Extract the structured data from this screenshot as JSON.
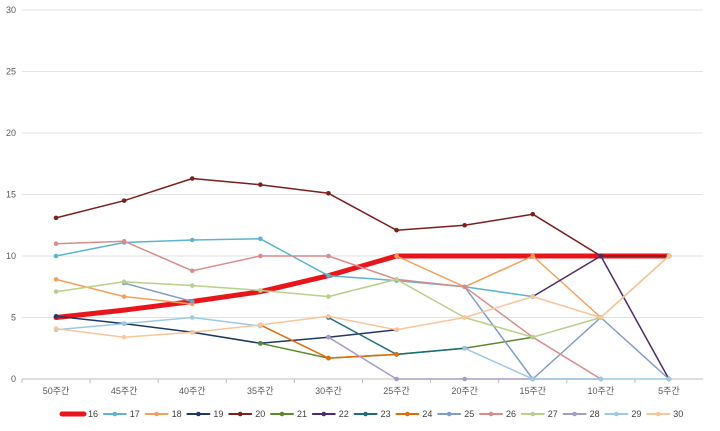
{
  "chart_data": {
    "type": "line",
    "title": "",
    "xlabel": "",
    "ylabel": "",
    "ylim": [
      0,
      30
    ],
    "y_ticks": [
      0,
      5,
      10,
      15,
      20,
      25,
      30
    ],
    "grid": true,
    "legend_position": "bottom",
    "categories": [
      "50주간",
      "45주간",
      "40주간",
      "35주간",
      "30주간",
      "25주간",
      "20주간",
      "15주간",
      "10주간",
      "5주간"
    ],
    "series": [
      {
        "name": "16",
        "color": "#e8161b",
        "width": 5,
        "values": [
          5,
          5.6,
          6.3,
          7.1,
          8.4,
          10,
          10,
          10,
          10,
          10
        ]
      },
      {
        "name": "17",
        "color": "#5bb5d0",
        "width": 1.5,
        "values": [
          10,
          11.1,
          11.3,
          11.4,
          8.4,
          8,
          7.5,
          6.7,
          null,
          null
        ]
      },
      {
        "name": "18",
        "color": "#f5a05a",
        "width": 1.5,
        "values": [
          8.1,
          6.7,
          6.1,
          null,
          null,
          10,
          7.5,
          10,
          5,
          10
        ]
      },
      {
        "name": "19",
        "color": "#1f3864",
        "width": 1.5,
        "values": [
          5.1,
          4.5,
          3.8,
          2.9,
          3.4,
          4,
          null,
          null,
          null,
          null
        ]
      },
      {
        "name": "20",
        "color": "#7b1f1f",
        "width": 1.5,
        "values": [
          13.1,
          14.5,
          16.3,
          15.8,
          15.1,
          12.1,
          12.5,
          13.4,
          10,
          10
        ]
      },
      {
        "name": "21",
        "color": "#5c8a2e",
        "width": 1.5,
        "values": [
          null,
          null,
          null,
          2.9,
          1.7,
          2,
          2.5,
          3.4,
          null,
          null
        ]
      },
      {
        "name": "22",
        "color": "#4b2c6e",
        "width": 1.5,
        "values": [
          null,
          null,
          null,
          null,
          null,
          null,
          null,
          6.7,
          10,
          0
        ]
      },
      {
        "name": "23",
        "color": "#1f6d7a",
        "width": 1.5,
        "values": [
          null,
          null,
          null,
          null,
          5,
          2,
          2.5,
          null,
          null,
          null
        ]
      },
      {
        "name": "24",
        "color": "#e36c0a",
        "width": 1.5,
        "values": [
          null,
          null,
          null,
          4.4,
          1.7,
          2,
          null,
          null,
          null,
          null
        ]
      },
      {
        "name": "25",
        "color": "#7f9ec5",
        "width": 1.5,
        "values": [
          null,
          7.8,
          6.3,
          null,
          null,
          null,
          7.5,
          0,
          5,
          0
        ]
      },
      {
        "name": "26",
        "color": "#d98c8c",
        "width": 1.5,
        "values": [
          11,
          11.2,
          8.8,
          10,
          10,
          8.1,
          7.5,
          3.4,
          0,
          null
        ]
      },
      {
        "name": "27",
        "color": "#b8d08a",
        "width": 1.5,
        "values": [
          7.1,
          7.9,
          7.6,
          7.2,
          6.7,
          8.1,
          5,
          3.4,
          5,
          10
        ]
      },
      {
        "name": "28",
        "color": "#a99bc7",
        "width": 1.5,
        "values": [
          null,
          null,
          null,
          null,
          3.4,
          0,
          0,
          0,
          0,
          null
        ]
      },
      {
        "name": "29",
        "color": "#9dc9e3",
        "width": 1.5,
        "values": [
          4,
          4.5,
          5,
          4.3,
          null,
          null,
          2.5,
          0,
          0,
          0
        ]
      },
      {
        "name": "30",
        "color": "#f9c59a",
        "width": 1.5,
        "values": [
          4.1,
          3.4,
          3.8,
          4.4,
          5.1,
          4,
          5,
          6.7,
          5,
          10
        ]
      }
    ]
  }
}
